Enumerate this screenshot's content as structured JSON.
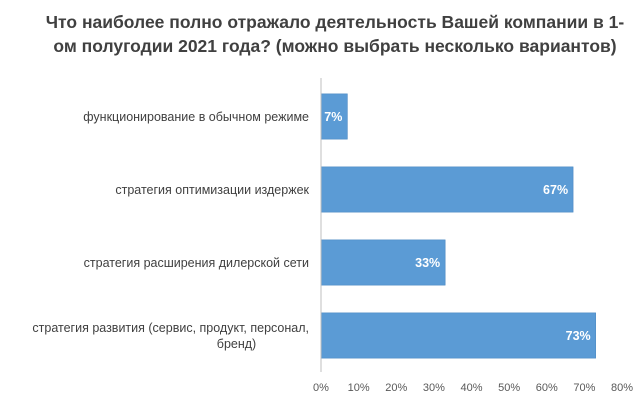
{
  "chart_data": {
    "type": "bar",
    "orientation": "horizontal",
    "title": "Что наиболее полно отражало деятельность Вашей компании в 1-ом полугодии 2021 года? (можно выбрать несколько вариантов)",
    "categories": [
      "функционирование в обычном режиме",
      "стратегия оптимизации издержек",
      "стратегия расширения дилерской сети",
      "стратегия развития (сервис, продукт, персонал, бренд)"
    ],
    "values": [
      7,
      67,
      33,
      73
    ],
    "data_labels": [
      "7%",
      "67%",
      "33%",
      "73%"
    ],
    "xlim": [
      0,
      80
    ],
    "x_ticks": [
      "0%",
      "10%",
      "20%",
      "30%",
      "40%",
      "50%",
      "60%",
      "70%",
      "80%"
    ],
    "grid": false,
    "legend": "none",
    "bar_color": "#5b9bd5",
    "xlabel": "",
    "ylabel": ""
  }
}
